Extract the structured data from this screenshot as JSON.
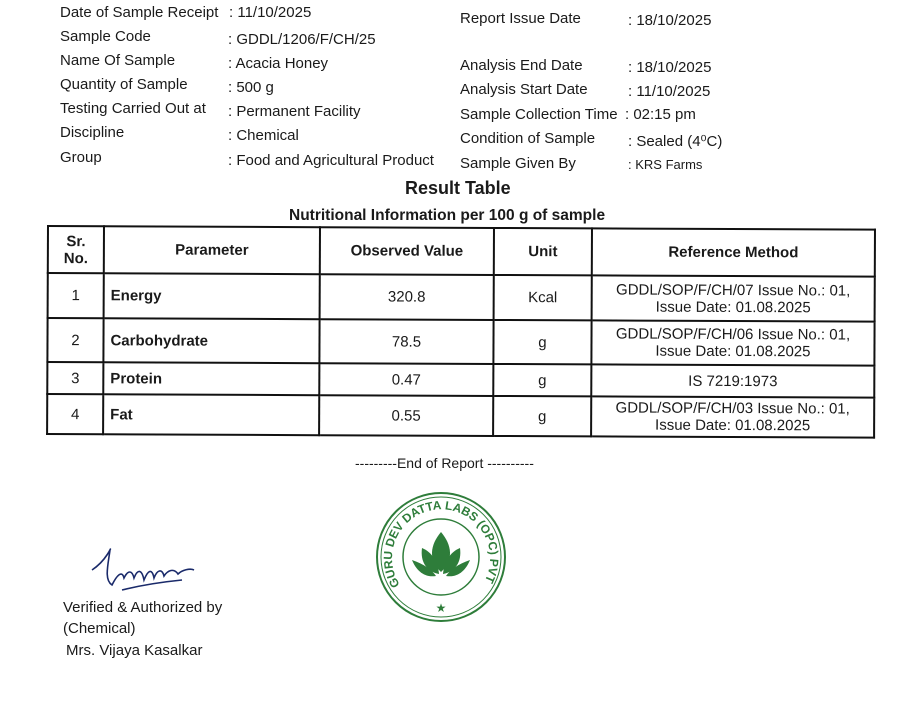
{
  "left_fields": [
    {
      "label": "Date of Sample Receipt",
      "value": ": 11/10/2025"
    },
    {
      "label": "Sample Code",
      "value": ": GDDL/1206/F/CH/25"
    },
    {
      "label": "Name Of Sample",
      "value": ": Acacia Honey"
    },
    {
      "label": "Quantity of Sample",
      "value": ": 500 g"
    },
    {
      "label": "Testing Carried Out at",
      "value": ": Permanent Facility"
    },
    {
      "label": "Discipline",
      "value": ": Chemical"
    },
    {
      "label": "Group",
      "value": ": Food and Agricultural Product"
    }
  ],
  "right_fields": [
    {
      "label": "Report Issue Date",
      "value": ": 18/10/2025"
    },
    {
      "label": "Analysis End Date",
      "value": ": 18/10/2025"
    },
    {
      "label": "Analysis Start Date",
      "value": ": 11/10/2025"
    },
    {
      "label": "Sample Collection Time",
      "value": ": 02:15 pm"
    },
    {
      "label": "Condition of Sample",
      "value": ": Sealed (4⁰C)"
    },
    {
      "label": "Sample Given By",
      "value": ": KRS Farms"
    }
  ],
  "result_title": "Result Table",
  "table_caption": "Nutritional Information per 100 g of sample",
  "table": {
    "headers": [
      "Sr. No.",
      "Parameter",
      "Observed Value",
      "Unit",
      "Reference Method"
    ],
    "rows": [
      [
        "1",
        "Energy",
        "320.8",
        "Kcal",
        "GDDL/SOP/F/CH/07 Issue No.: 01, Issue Date: 01.08.2025"
      ],
      [
        "2",
        "Carbohydrate",
        "78.5",
        "g",
        "GDDL/SOP/F/CH/06 Issue No.: 01, Issue Date: 01.08.2025"
      ],
      [
        "3",
        "Protein",
        "0.47",
        "g",
        "IS 7219:1973"
      ],
      [
        "4",
        "Fat",
        "0.55",
        "g",
        "GDDL/SOP/F/CH/03 Issue No.: 01, Issue Date: 01.08.2025"
      ]
    ]
  },
  "end_of_report": "---------End of Report ----------",
  "stamp": {
    "text": "GURU DEV DATTA LABS (OPC) PVT LTD",
    "color": "#2e7d3a"
  },
  "signature": {
    "line1": "Verified & Authorized by",
    "line2": "(Chemical)",
    "line3": "Mrs. Vijaya Kasalkar"
  }
}
